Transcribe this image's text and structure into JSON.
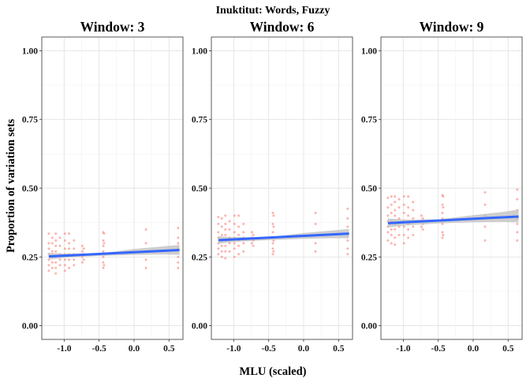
{
  "chart_data": {
    "type": "scatter",
    "title": "Inuktitut: Words, Fuzzy",
    "xlabel": "MLU (scaled)",
    "ylabel": "Proportion of variation sets",
    "xlim": [
      -1.32,
      0.7
    ],
    "ylim": [
      -0.05,
      1.05
    ],
    "xticks": [
      -1.0,
      -0.5,
      0.0,
      0.5
    ],
    "xtick_labels": [
      "-1.0",
      "-0.5",
      "0.0",
      "0.5"
    ],
    "yticks": [
      0,
      0.25,
      0.5,
      0.75,
      1.0
    ],
    "ytick_labels": [
      "0.00",
      "0.25",
      "0.50",
      "0.75",
      "1.00"
    ],
    "grid": true,
    "colors": {
      "points": "#f8766d",
      "fit": "#3366ff",
      "ci": "#bdbdbd"
    },
    "mlu_values": [
      -1.22,
      -1.17,
      -1.12,
      -1.06,
      -0.99,
      -0.93,
      -0.86,
      -0.74,
      -0.72,
      -0.44,
      -0.43,
      0.17,
      0.63
    ],
    "panels": [
      {
        "title": "Window: 3",
        "fit": {
          "x": [
            -1.22,
            0.65
          ],
          "y": [
            0.252,
            0.275
          ]
        },
        "ci": {
          "x": [
            -1.22,
            -1.0,
            -0.5,
            0.0,
            0.4,
            0.65
          ],
          "lower": [
            0.24,
            0.247,
            0.254,
            0.257,
            0.259,
            0.258
          ],
          "upper": [
            0.265,
            0.262,
            0.262,
            0.279,
            0.288,
            0.294
          ]
        },
        "points": [
          {
            "x": -1.22,
            "y": 0.335
          },
          {
            "x": -1.22,
            "y": 0.3
          },
          {
            "x": -1.22,
            "y": 0.28
          },
          {
            "x": -1.22,
            "y": 0.26
          },
          {
            "x": -1.22,
            "y": 0.24
          },
          {
            "x": -1.22,
            "y": 0.22
          },
          {
            "x": -1.22,
            "y": 0.2
          },
          {
            "x": -1.17,
            "y": 0.32
          },
          {
            "x": -1.17,
            "y": 0.3
          },
          {
            "x": -1.17,
            "y": 0.27
          },
          {
            "x": -1.17,
            "y": 0.25
          },
          {
            "x": -1.17,
            "y": 0.23
          },
          {
            "x": -1.17,
            "y": 0.21
          },
          {
            "x": -1.12,
            "y": 0.335
          },
          {
            "x": -1.12,
            "y": 0.31
          },
          {
            "x": -1.12,
            "y": 0.29
          },
          {
            "x": -1.12,
            "y": 0.27
          },
          {
            "x": -1.12,
            "y": 0.25
          },
          {
            "x": -1.12,
            "y": 0.23
          },
          {
            "x": -1.12,
            "y": 0.21
          },
          {
            "x": -1.12,
            "y": 0.19
          },
          {
            "x": -1.06,
            "y": 0.32
          },
          {
            "x": -1.06,
            "y": 0.29
          },
          {
            "x": -1.06,
            "y": 0.26
          },
          {
            "x": -1.06,
            "y": 0.24
          },
          {
            "x": -1.06,
            "y": 0.22
          },
          {
            "x": -0.99,
            "y": 0.335
          },
          {
            "x": -0.99,
            "y": 0.31
          },
          {
            "x": -0.99,
            "y": 0.28
          },
          {
            "x": -0.99,
            "y": 0.26
          },
          {
            "x": -0.99,
            "y": 0.24
          },
          {
            "x": -0.99,
            "y": 0.22
          },
          {
            "x": -0.99,
            "y": 0.2
          },
          {
            "x": -0.93,
            "y": 0.335
          },
          {
            "x": -0.93,
            "y": 0.3
          },
          {
            "x": -0.93,
            "y": 0.28
          },
          {
            "x": -0.93,
            "y": 0.26
          },
          {
            "x": -0.93,
            "y": 0.24
          },
          {
            "x": -0.93,
            "y": 0.21
          },
          {
            "x": -0.86,
            "y": 0.31
          },
          {
            "x": -0.86,
            "y": 0.28
          },
          {
            "x": -0.86,
            "y": 0.26
          },
          {
            "x": -0.86,
            "y": 0.24
          },
          {
            "x": -0.86,
            "y": 0.22
          },
          {
            "x": -0.74,
            "y": 0.29
          },
          {
            "x": -0.74,
            "y": 0.27
          },
          {
            "x": -0.74,
            "y": 0.25
          },
          {
            "x": -0.74,
            "y": 0.23
          },
          {
            "x": -0.72,
            "y": 0.28
          },
          {
            "x": -0.72,
            "y": 0.26
          },
          {
            "x": -0.72,
            "y": 0.24
          },
          {
            "x": -0.44,
            "y": 0.34
          },
          {
            "x": -0.44,
            "y": 0.31
          },
          {
            "x": -0.44,
            "y": 0.29
          },
          {
            "x": -0.44,
            "y": 0.27
          },
          {
            "x": -0.44,
            "y": 0.25
          },
          {
            "x": -0.44,
            "y": 0.23
          },
          {
            "x": -0.44,
            "y": 0.21
          },
          {
            "x": -0.43,
            "y": 0.335
          },
          {
            "x": -0.43,
            "y": 0.3
          },
          {
            "x": -0.43,
            "y": 0.26
          },
          {
            "x": -0.43,
            "y": 0.22
          },
          {
            "x": 0.17,
            "y": 0.35
          },
          {
            "x": 0.17,
            "y": 0.3
          },
          {
            "x": 0.17,
            "y": 0.27
          },
          {
            "x": 0.17,
            "y": 0.24
          },
          {
            "x": 0.17,
            "y": 0.21
          },
          {
            "x": 0.63,
            "y": 0.355
          },
          {
            "x": 0.63,
            "y": 0.32
          },
          {
            "x": 0.63,
            "y": 0.3
          },
          {
            "x": 0.63,
            "y": 0.28
          },
          {
            "x": 0.63,
            "y": 0.25
          },
          {
            "x": 0.63,
            "y": 0.23
          },
          {
            "x": 0.63,
            "y": 0.21
          }
        ]
      },
      {
        "title": "Window: 6",
        "fit": {
          "x": [
            -1.22,
            0.65
          ],
          "y": [
            0.311,
            0.335
          ]
        },
        "ci": {
          "x": [
            -1.22,
            -1.0,
            -0.5,
            0.0,
            0.4,
            0.65
          ],
          "lower": [
            0.298,
            0.305,
            0.311,
            0.316,
            0.318,
            0.318
          ],
          "upper": [
            0.325,
            0.322,
            0.322,
            0.337,
            0.346,
            0.352
          ]
        },
        "points": [
          {
            "x": -1.22,
            "y": 0.395
          },
          {
            "x": -1.22,
            "y": 0.37
          },
          {
            "x": -1.22,
            "y": 0.34
          },
          {
            "x": -1.22,
            "y": 0.32
          },
          {
            "x": -1.22,
            "y": 0.3
          },
          {
            "x": -1.22,
            "y": 0.28
          },
          {
            "x": -1.22,
            "y": 0.26
          },
          {
            "x": -1.17,
            "y": 0.39
          },
          {
            "x": -1.17,
            "y": 0.36
          },
          {
            "x": -1.17,
            "y": 0.33
          },
          {
            "x": -1.17,
            "y": 0.31
          },
          {
            "x": -1.17,
            "y": 0.29
          },
          {
            "x": -1.17,
            "y": 0.27
          },
          {
            "x": -1.17,
            "y": 0.25
          },
          {
            "x": -1.12,
            "y": 0.4
          },
          {
            "x": -1.12,
            "y": 0.37
          },
          {
            "x": -1.12,
            "y": 0.35
          },
          {
            "x": -1.12,
            "y": 0.33
          },
          {
            "x": -1.12,
            "y": 0.31
          },
          {
            "x": -1.12,
            "y": 0.29
          },
          {
            "x": -1.12,
            "y": 0.27
          },
          {
            "x": -1.12,
            "y": 0.245
          },
          {
            "x": -1.06,
            "y": 0.38
          },
          {
            "x": -1.06,
            "y": 0.35
          },
          {
            "x": -1.06,
            "y": 0.32
          },
          {
            "x": -1.06,
            "y": 0.3
          },
          {
            "x": -1.06,
            "y": 0.27
          },
          {
            "x": -0.99,
            "y": 0.4
          },
          {
            "x": -0.99,
            "y": 0.37
          },
          {
            "x": -0.99,
            "y": 0.34
          },
          {
            "x": -0.99,
            "y": 0.32
          },
          {
            "x": -0.99,
            "y": 0.3
          },
          {
            "x": -0.99,
            "y": 0.28
          },
          {
            "x": -0.99,
            "y": 0.25
          },
          {
            "x": -0.93,
            "y": 0.4
          },
          {
            "x": -0.93,
            "y": 0.36
          },
          {
            "x": -0.93,
            "y": 0.33
          },
          {
            "x": -0.93,
            "y": 0.31
          },
          {
            "x": -0.93,
            "y": 0.29
          },
          {
            "x": -0.93,
            "y": 0.26
          },
          {
            "x": -0.86,
            "y": 0.37
          },
          {
            "x": -0.86,
            "y": 0.34
          },
          {
            "x": -0.86,
            "y": 0.32
          },
          {
            "x": -0.86,
            "y": 0.3
          },
          {
            "x": -0.86,
            "y": 0.27
          },
          {
            "x": -0.74,
            "y": 0.34
          },
          {
            "x": -0.74,
            "y": 0.32
          },
          {
            "x": -0.74,
            "y": 0.3
          },
          {
            "x": -0.72,
            "y": 0.33
          },
          {
            "x": -0.72,
            "y": 0.31
          },
          {
            "x": -0.72,
            "y": 0.29
          },
          {
            "x": -0.44,
            "y": 0.41
          },
          {
            "x": -0.44,
            "y": 0.37
          },
          {
            "x": -0.44,
            "y": 0.34
          },
          {
            "x": -0.44,
            "y": 0.32
          },
          {
            "x": -0.44,
            "y": 0.3
          },
          {
            "x": -0.44,
            "y": 0.28
          },
          {
            "x": -0.44,
            "y": 0.26
          },
          {
            "x": -0.43,
            "y": 0.4
          },
          {
            "x": -0.43,
            "y": 0.36
          },
          {
            "x": -0.43,
            "y": 0.31
          },
          {
            "x": -0.43,
            "y": 0.27
          },
          {
            "x": 0.17,
            "y": 0.41
          },
          {
            "x": 0.17,
            "y": 0.37
          },
          {
            "x": 0.17,
            "y": 0.33
          },
          {
            "x": 0.17,
            "y": 0.3
          },
          {
            "x": 0.17,
            "y": 0.27
          },
          {
            "x": 0.63,
            "y": 0.425
          },
          {
            "x": 0.63,
            "y": 0.39
          },
          {
            "x": 0.63,
            "y": 0.36
          },
          {
            "x": 0.63,
            "y": 0.33
          },
          {
            "x": 0.63,
            "y": 0.31
          },
          {
            "x": 0.63,
            "y": 0.28
          },
          {
            "x": 0.63,
            "y": 0.26
          }
        ]
      },
      {
        "title": "Window: 9",
        "fit": {
          "x": [
            -1.22,
            0.65
          ],
          "y": [
            0.373,
            0.397
          ]
        },
        "ci": {
          "x": [
            -1.22,
            -1.0,
            -0.5,
            0.0,
            0.4,
            0.65
          ],
          "lower": [
            0.357,
            0.364,
            0.372,
            0.376,
            0.377,
            0.376
          ],
          "upper": [
            0.39,
            0.386,
            0.386,
            0.402,
            0.413,
            0.422
          ]
        },
        "points": [
          {
            "x": -1.22,
            "y": 0.465
          },
          {
            "x": -1.22,
            "y": 0.43
          },
          {
            "x": -1.22,
            "y": 0.4
          },
          {
            "x": -1.22,
            "y": 0.38
          },
          {
            "x": -1.22,
            "y": 0.36
          },
          {
            "x": -1.22,
            "y": 0.34
          },
          {
            "x": -1.22,
            "y": 0.31
          },
          {
            "x": -1.17,
            "y": 0.47
          },
          {
            "x": -1.17,
            "y": 0.44
          },
          {
            "x": -1.17,
            "y": 0.41
          },
          {
            "x": -1.17,
            "y": 0.38
          },
          {
            "x": -1.17,
            "y": 0.35
          },
          {
            "x": -1.17,
            "y": 0.33
          },
          {
            "x": -1.17,
            "y": 0.3
          },
          {
            "x": -1.12,
            "y": 0.47
          },
          {
            "x": -1.12,
            "y": 0.45
          },
          {
            "x": -1.12,
            "y": 0.42
          },
          {
            "x": -1.12,
            "y": 0.4
          },
          {
            "x": -1.12,
            "y": 0.37
          },
          {
            "x": -1.12,
            "y": 0.35
          },
          {
            "x": -1.12,
            "y": 0.32
          },
          {
            "x": -1.12,
            "y": 0.295
          },
          {
            "x": -1.06,
            "y": 0.46
          },
          {
            "x": -1.06,
            "y": 0.43
          },
          {
            "x": -1.06,
            "y": 0.39
          },
          {
            "x": -1.06,
            "y": 0.36
          },
          {
            "x": -1.06,
            "y": 0.33
          },
          {
            "x": -0.99,
            "y": 0.47
          },
          {
            "x": -0.99,
            "y": 0.44
          },
          {
            "x": -0.99,
            "y": 0.41
          },
          {
            "x": -0.99,
            "y": 0.38
          },
          {
            "x": -0.99,
            "y": 0.36
          },
          {
            "x": -0.99,
            "y": 0.33
          },
          {
            "x": -0.99,
            "y": 0.3
          },
          {
            "x": -0.93,
            "y": 0.47
          },
          {
            "x": -0.93,
            "y": 0.43
          },
          {
            "x": -0.93,
            "y": 0.4
          },
          {
            "x": -0.93,
            "y": 0.37
          },
          {
            "x": -0.93,
            "y": 0.35
          },
          {
            "x": -0.93,
            "y": 0.32
          },
          {
            "x": -0.86,
            "y": 0.45
          },
          {
            "x": -0.86,
            "y": 0.42
          },
          {
            "x": -0.86,
            "y": 0.39
          },
          {
            "x": -0.86,
            "y": 0.36
          },
          {
            "x": -0.86,
            "y": 0.33
          },
          {
            "x": -0.74,
            "y": 0.4
          },
          {
            "x": -0.74,
            "y": 0.38
          },
          {
            "x": -0.74,
            "y": 0.36
          },
          {
            "x": -0.72,
            "y": 0.39
          },
          {
            "x": -0.72,
            "y": 0.37
          },
          {
            "x": -0.72,
            "y": 0.35
          },
          {
            "x": -0.44,
            "y": 0.475
          },
          {
            "x": -0.44,
            "y": 0.44
          },
          {
            "x": -0.44,
            "y": 0.41
          },
          {
            "x": -0.44,
            "y": 0.39
          },
          {
            "x": -0.44,
            "y": 0.37
          },
          {
            "x": -0.44,
            "y": 0.34
          },
          {
            "x": -0.44,
            "y": 0.32
          },
          {
            "x": -0.43,
            "y": 0.47
          },
          {
            "x": -0.43,
            "y": 0.43
          },
          {
            "x": -0.43,
            "y": 0.38
          },
          {
            "x": -0.43,
            "y": 0.33
          },
          {
            "x": 0.17,
            "y": 0.485
          },
          {
            "x": 0.17,
            "y": 0.44
          },
          {
            "x": 0.17,
            "y": 0.4
          },
          {
            "x": 0.17,
            "y": 0.36
          },
          {
            "x": 0.17,
            "y": 0.31
          },
          {
            "x": 0.63,
            "y": 0.495
          },
          {
            "x": 0.63,
            "y": 0.46
          },
          {
            "x": 0.63,
            "y": 0.42
          },
          {
            "x": 0.63,
            "y": 0.39
          },
          {
            "x": 0.63,
            "y": 0.37
          },
          {
            "x": 0.63,
            "y": 0.34
          },
          {
            "x": 0.63,
            "y": 0.31
          }
        ]
      }
    ]
  }
}
